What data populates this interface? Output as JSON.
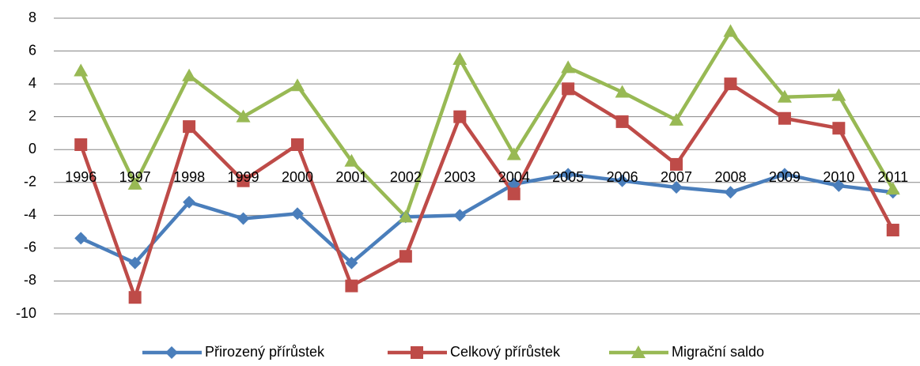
{
  "chart_data": {
    "type": "line",
    "categories": [
      "1996",
      "1997",
      "1998",
      "1999",
      "2000",
      "2001",
      "2002",
      "2003",
      "2004",
      "2005",
      "2006",
      "2007",
      "2008",
      "2009",
      "2010",
      "2011"
    ],
    "series": [
      {
        "name": "Přirozený přírůstek",
        "color": "#4a7ebb",
        "marker": "diamond",
        "values": [
          -5.4,
          -6.9,
          -3.2,
          -4.2,
          -3.9,
          -6.9,
          -4.1,
          -4.0,
          -2.1,
          -1.5,
          -1.9,
          -2.3,
          -2.6,
          -1.5,
          -2.2,
          -2.6
        ]
      },
      {
        "name": "Celkový přírůstek",
        "color": "#be4b48",
        "marker": "square",
        "values": [
          0.3,
          -9.0,
          1.4,
          -1.9,
          0.3,
          -8.3,
          -6.5,
          2.0,
          -2.7,
          3.7,
          1.7,
          -0.9,
          4.0,
          1.9,
          1.3,
          -4.9
        ]
      },
      {
        "name": "Migrační saldo",
        "color": "#98b954",
        "marker": "triangle",
        "values": [
          4.8,
          -2.1,
          4.5,
          2.0,
          3.9,
          -0.7,
          -4.1,
          5.5,
          -0.3,
          5.0,
          3.5,
          1.8,
          7.2,
          3.2,
          3.3,
          -2.4
        ]
      }
    ],
    "ylim": [
      -10,
      8
    ],
    "yticks": [
      -10,
      -8,
      -6,
      -4,
      -2,
      0,
      2,
      4,
      6,
      8
    ],
    "grid": true,
    "legend": "bottom"
  }
}
